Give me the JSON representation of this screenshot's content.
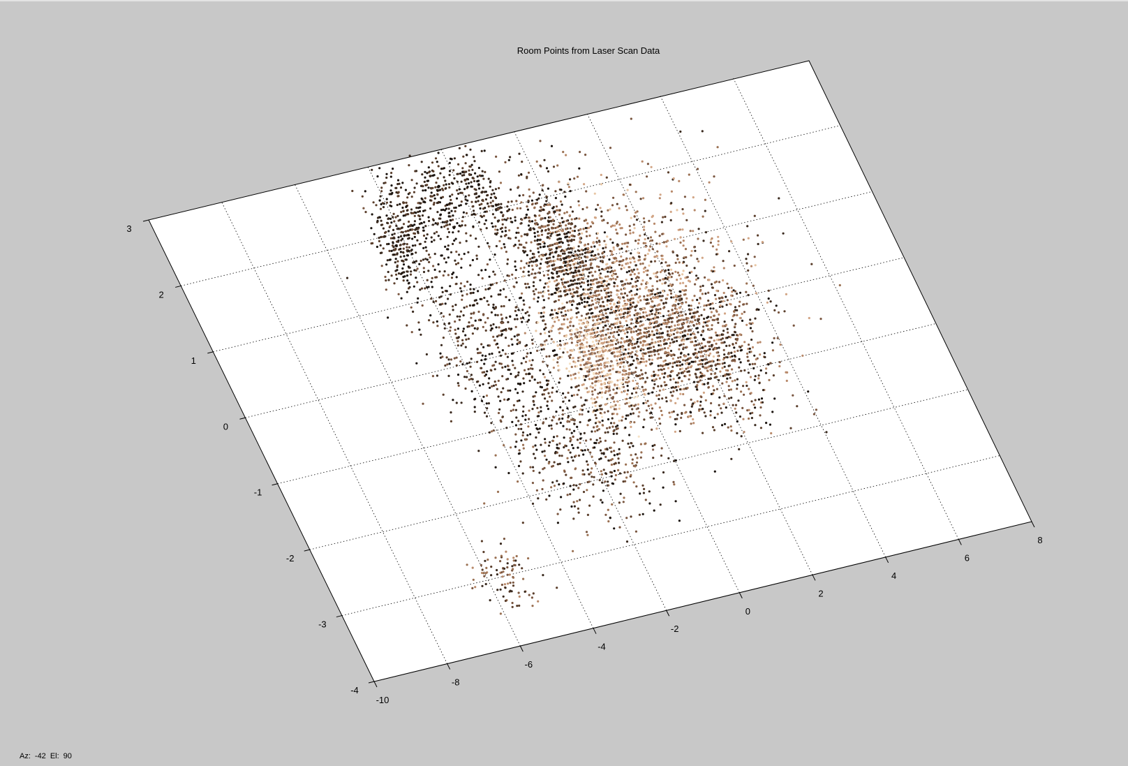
{
  "window": {
    "background": "#c8c8c8",
    "plot_background": "#ffffff"
  },
  "status": {
    "az_label": "Az:",
    "az_value": "-42",
    "el_label": "El:",
    "el_value": "90"
  },
  "chart_data": {
    "type": "scatter",
    "title": "Room Points from Laser Scan Data",
    "xlabel": "",
    "ylabel": "",
    "grid": true,
    "legend": "none",
    "view": {
      "azimuth": -42,
      "elevation": 90
    },
    "xlim": [
      -10,
      8
    ],
    "ylim": [
      -4,
      3
    ],
    "x_ticks": [
      "-10",
      "-8",
      "-6",
      "-4",
      "-2",
      "0",
      "2",
      "4",
      "6",
      "8"
    ],
    "x_tick_values": [
      -10,
      -8,
      -6,
      -4,
      -2,
      0,
      2,
      4,
      6,
      8
    ],
    "y_ticks": [
      "-4",
      "-3",
      "-2",
      "-1",
      "0",
      "1",
      "2",
      "3"
    ],
    "y_tick_values": [
      -4,
      -3,
      -2,
      -1,
      0,
      1,
      2,
      3
    ],
    "point_colors": [
      "#1c1510",
      "#3a2a1f",
      "#5b3f2c",
      "#7a5640",
      "#9a7052",
      "#b8896a",
      "#d2a585",
      "#e8c6a4",
      "#f6e2c6",
      "#8a6a5a"
    ],
    "clusters": [
      {
        "cx": -0.3,
        "cy": 1.2,
        "sx": 0.6,
        "sy": 0.55,
        "n": 900,
        "tone": [
          0,
          4
        ]
      },
      {
        "cx": -1.6,
        "cy": 2.3,
        "sx": 0.25,
        "sy": 0.35,
        "n": 180,
        "tone": [
          0,
          2
        ]
      },
      {
        "cx": -2.6,
        "cy": 2.3,
        "sx": 0.25,
        "sy": 0.35,
        "n": 180,
        "tone": [
          0,
          2
        ]
      },
      {
        "cx": -3.6,
        "cy": 2.1,
        "sx": 0.25,
        "sy": 0.35,
        "n": 180,
        "tone": [
          0,
          2
        ]
      },
      {
        "cx": -4.3,
        "cy": 1.8,
        "sx": 0.25,
        "sy": 0.35,
        "n": 170,
        "tone": [
          0,
          2
        ]
      },
      {
        "cx": -3.0,
        "cy": 0.3,
        "sx": 0.9,
        "sy": 0.8,
        "n": 600,
        "tone": [
          0,
          3
        ]
      },
      {
        "cx": 0.6,
        "cy": -0.2,
        "sx": 0.9,
        "sy": 0.6,
        "n": 1000,
        "tone": [
          0,
          6
        ]
      },
      {
        "cx": -0.8,
        "cy": -0.4,
        "sx": 0.45,
        "sy": 0.4,
        "n": 450,
        "tone": [
          5,
          9
        ]
      },
      {
        "cx": 2.2,
        "cy": -0.6,
        "sx": 0.8,
        "sy": 0.55,
        "n": 700,
        "tone": [
          0,
          5
        ]
      },
      {
        "cx": -2.0,
        "cy": -1.6,
        "sx": 1.0,
        "sy": 0.5,
        "n": 450,
        "tone": [
          0,
          4
        ]
      },
      {
        "cx": 1.0,
        "cy": 0.6,
        "sx": 1.0,
        "sy": 0.7,
        "n": 500,
        "tone": [
          3,
          7
        ]
      },
      {
        "cx": -5.6,
        "cy": -3.0,
        "sx": 0.4,
        "sy": 0.25,
        "n": 90,
        "tone": [
          1,
          5
        ]
      },
      {
        "cx": 3.0,
        "cy": 0.8,
        "sx": 1.2,
        "sy": 0.7,
        "n": 180,
        "tone": [
          1,
          6
        ]
      }
    ]
  }
}
